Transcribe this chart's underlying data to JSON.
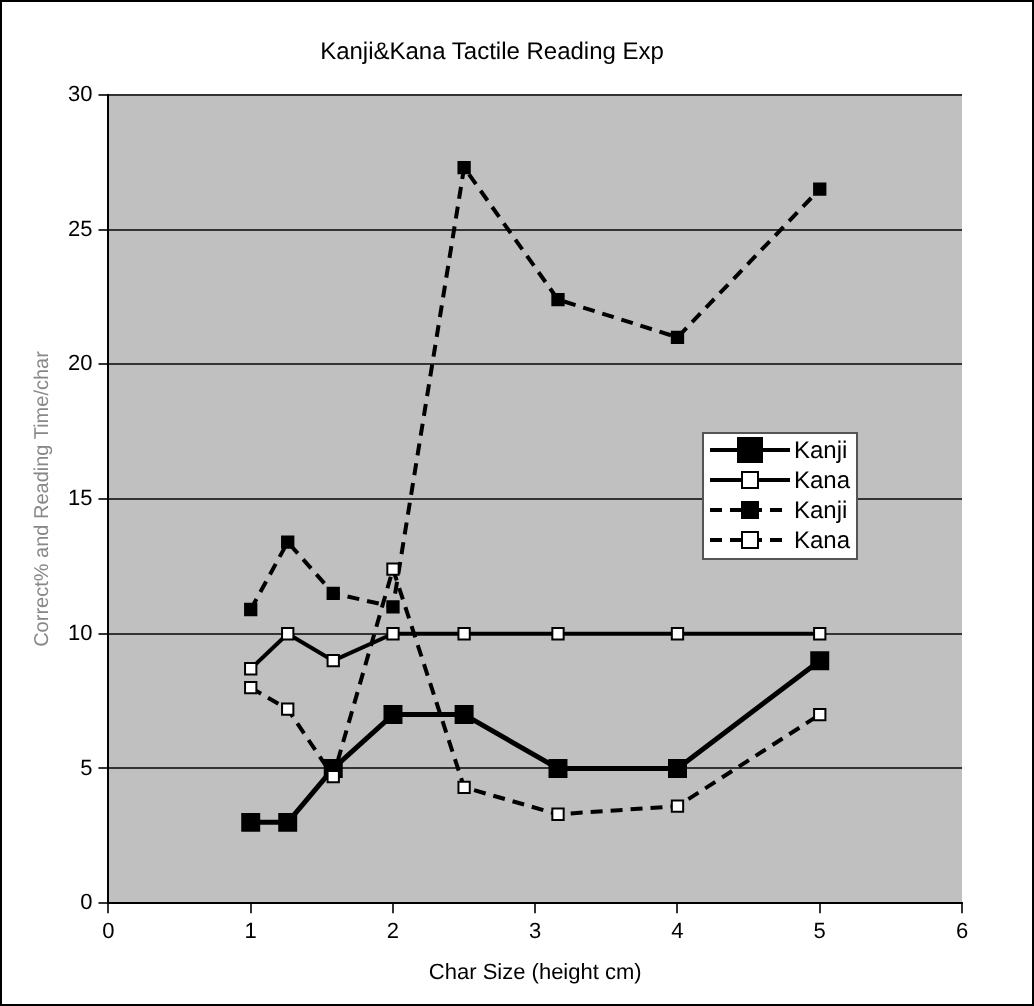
{
  "chart_data": {
    "type": "line",
    "title": "Kanji&Kana Tactile Reading Exp",
    "xlabel": "Char Size (height cm)",
    "ylabel": "Correct% and Reading Time/char",
    "x": [
      1,
      1.26,
      1.58,
      2,
      2.5,
      3.16,
      4,
      5
    ],
    "series": [
      {
        "name": "Kanji",
        "color": "#000000",
        "line_style": "solid",
        "values": [
          3,
          3,
          5,
          7,
          7,
          5,
          5,
          9
        ]
      },
      {
        "name": "Kana",
        "color": "#000000",
        "line_style": "solid",
        "values": [
          8.7,
          10,
          9,
          10,
          10,
          10,
          10,
          10
        ]
      },
      {
        "name": "Kanji",
        "color": "#000000",
        "line_style": "dashed",
        "values": [
          10.9,
          13.4,
          11.5,
          11,
          27.3,
          22.4,
          21,
          26.5
        ]
      },
      {
        "name": "Kana",
        "color": "#000000",
        "line_style": "dashed",
        "values": [
          8,
          7.2,
          4.7,
          12.4,
          4.3,
          3.3,
          3.6,
          7
        ]
      }
    ],
    "xlim": [
      0,
      6
    ],
    "xticks": [
      0,
      1,
      2,
      3,
      4,
      5,
      6
    ],
    "ylim": [
      0,
      30
    ],
    "yticks": [
      0,
      5,
      10,
      15,
      20,
      25,
      30
    ],
    "grid": "y",
    "legend": "right",
    "marker": "square"
  }
}
